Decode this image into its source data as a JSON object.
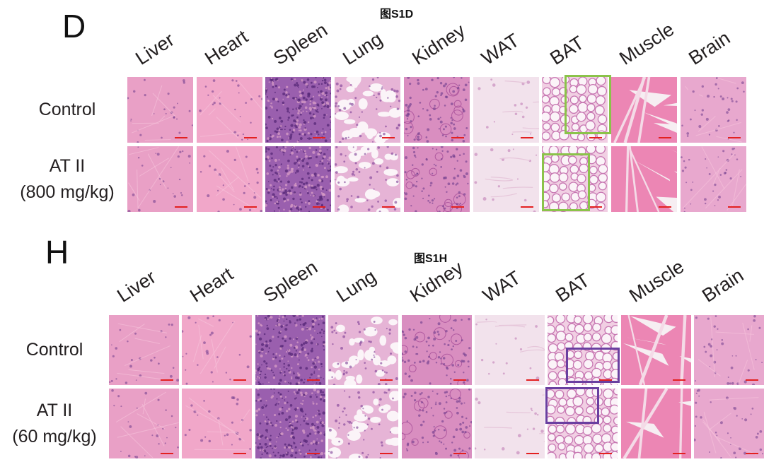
{
  "panels": [
    {
      "id": "D",
      "letter": "D",
      "figure_label": "图S1D",
      "tissues": [
        "Liver",
        "Heart",
        "Spleen",
        "Lung",
        "Kidney",
        "WAT",
        "BAT",
        "Muscle",
        "Brain"
      ],
      "rows": [
        {
          "lines": [
            "Control"
          ]
        },
        {
          "lines": [
            "AT II",
            "(800 mg/kg)"
          ]
        }
      ],
      "roi_color": "#8bc34a",
      "roi_tissue": "BAT"
    },
    {
      "id": "H",
      "letter": "H",
      "figure_label": "图S1H",
      "tissues": [
        "Liver",
        "Heart",
        "Spleen",
        "Lung",
        "Kidney",
        "WAT",
        "BAT",
        "Muscle",
        "Brain"
      ],
      "rows": [
        {
          "lines": [
            "Control"
          ]
        },
        {
          "lines": [
            "AT II",
            "(60 mg/kg)"
          ]
        }
      ],
      "roi_color": "#6a3fa0",
      "roi_tissue": "BAT"
    }
  ],
  "stain_colors": {
    "Liver": "#e9a0c6",
    "Heart": "#f1a7c9",
    "Spleen": "#9a5fae",
    "Lung": "#e6b4d6",
    "Kidney": "#d98ec0",
    "WAT": "#f2e2ec",
    "BAT": "#f1cfe3",
    "Muscle": "#ec86b4",
    "Brain": "#e8a8ce"
  },
  "scale_bar_color": "#e32020"
}
